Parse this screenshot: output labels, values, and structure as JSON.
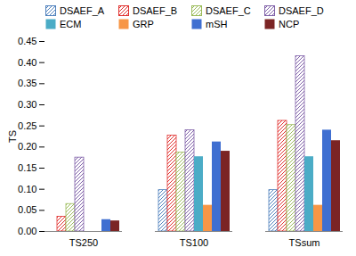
{
  "chart_data": {
    "type": "bar",
    "categories": [
      "TS250",
      "TS100",
      "TSsum"
    ],
    "y_label": "TS",
    "ylim": [
      0,
      0.45
    ],
    "yticks": [
      {
        "value": 0,
        "label": "0.00"
      },
      {
        "value": 0.05,
        "label": "0.05"
      },
      {
        "value": 0.1,
        "label": "0.10"
      },
      {
        "value": 0.15,
        "label": "0.15"
      },
      {
        "value": 0.2,
        "label": "0.20"
      },
      {
        "value": 0.25,
        "label": "0.25"
      },
      {
        "value": 0.3,
        "label": "0.30"
      },
      {
        "value": 0.35,
        "label": "0.35"
      },
      {
        "value": 0.4,
        "label": "0.40"
      },
      {
        "value": 0.45,
        "label": "0.45"
      }
    ],
    "grid": false,
    "legend": "top",
    "series": [
      {
        "name": "DSAEF_A",
        "color": "#4f81bd",
        "marker": "hatch",
        "values": [
          0,
          0.098,
          0.098
        ]
      },
      {
        "name": "DSAEF_B",
        "color": "#e0302e",
        "marker": "hatch",
        "values": [
          0.035,
          0.227,
          0.262
        ]
      },
      {
        "name": "DSAEF_C",
        "color": "#9bbb59",
        "marker": "hatch",
        "values": [
          0.065,
          0.187,
          0.252
        ]
      },
      {
        "name": "DSAEF_D",
        "color": "#7f60a8",
        "marker": "hatch",
        "values": [
          0.175,
          0.24,
          0.415
        ]
      },
      {
        "name": "ECM",
        "color": "#4bacc6",
        "marker": "solid",
        "values": [
          0,
          0.177,
          0.177
        ]
      },
      {
        "name": "GRP",
        "color": "#f79646",
        "marker": "solid",
        "values": [
          0,
          0.062,
          0.062
        ]
      },
      {
        "name": "mSH",
        "color": "#3f6fd1",
        "marker": "solid",
        "values": [
          0.028,
          0.212,
          0.24
        ]
      },
      {
        "name": "NCP",
        "color": "#7b2424",
        "marker": "solid",
        "values": [
          0.025,
          0.19,
          0.215
        ]
      }
    ]
  }
}
